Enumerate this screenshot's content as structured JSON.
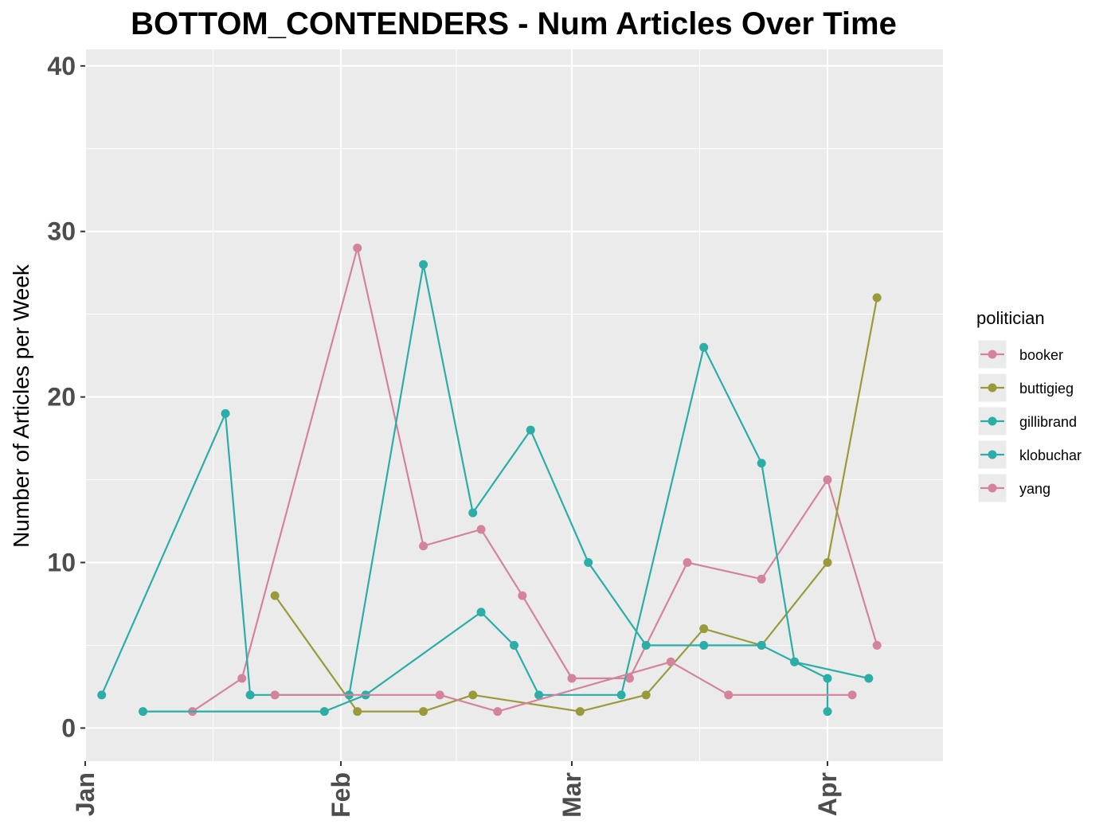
{
  "chart_data": {
    "type": "line",
    "title": "BOTTOM_CONTENDERS - Num Articles Over Time",
    "xlabel": "",
    "ylabel": "Number of Articles per Week",
    "x_ticks": [
      "Jan",
      "Feb",
      "Mar",
      "Apr"
    ],
    "y_ticks": [
      "0",
      "10",
      "20",
      "30",
      "40"
    ],
    "xlim": [
      "2019-01-01",
      "2019-04-15"
    ],
    "ylim": [
      -2,
      41
    ],
    "grid": true,
    "legend_title": "politician",
    "legend_position": "right",
    "series": [
      {
        "name": "booker",
        "color": "#D4849A",
        "points": [
          [
            "2019-01-14",
            1
          ],
          [
            "2019-01-20",
            3
          ],
          [
            "2019-02-03",
            29
          ],
          [
            "2019-02-11",
            11
          ],
          [
            "2019-02-18",
            12
          ],
          [
            "2019-02-23",
            8
          ],
          [
            "2019-03-01",
            3
          ],
          [
            "2019-03-08",
            3
          ],
          [
            "2019-03-15",
            10
          ],
          [
            "2019-03-24",
            9
          ],
          [
            "2019-04-01",
            15
          ],
          [
            "2019-04-07",
            5
          ]
        ]
      },
      {
        "name": "buttigieg",
        "color": "#9A9A3A",
        "points": [
          [
            "2019-01-24",
            8
          ],
          [
            "2019-02-03",
            1
          ],
          [
            "2019-02-11",
            1
          ],
          [
            "2019-02-17",
            2
          ],
          [
            "2019-03-02",
            1
          ],
          [
            "2019-03-10",
            2
          ],
          [
            "2019-03-17",
            6
          ],
          [
            "2019-03-24",
            5
          ],
          [
            "2019-04-01",
            10
          ],
          [
            "2019-04-07",
            26
          ]
        ]
      },
      {
        "name": "gillibrand",
        "color": "#2BADA8",
        "points": [
          [
            "2019-01-03",
            2
          ],
          [
            "2019-01-18",
            19
          ],
          [
            "2019-01-21",
            2
          ],
          [
            "2019-02-02",
            2
          ],
          [
            "2019-02-11",
            28
          ],
          [
            "2019-02-17",
            13
          ],
          [
            "2019-02-24",
            18
          ],
          [
            "2019-03-03",
            10
          ],
          [
            "2019-03-10",
            5
          ],
          [
            "2019-03-17",
            5
          ],
          [
            "2019-03-24",
            5
          ],
          [
            "2019-03-28",
            4
          ],
          [
            "2019-04-06",
            3
          ]
        ]
      },
      {
        "name": "klobuchar",
        "color": "#2BADA8",
        "points": [
          [
            "2019-01-08",
            1
          ],
          [
            "2019-01-30",
            1
          ],
          [
            "2019-02-04",
            2
          ],
          [
            "2019-02-18",
            7
          ],
          [
            "2019-02-22",
            5
          ],
          [
            "2019-02-25",
            2
          ],
          [
            "2019-03-07",
            2
          ],
          [
            "2019-03-17",
            23
          ],
          [
            "2019-03-24",
            16
          ],
          [
            "2019-03-28",
            4
          ],
          [
            "2019-04-01",
            3
          ],
          [
            "2019-04-01",
            1
          ]
        ]
      },
      {
        "name": "yang",
        "color": "#D4849A",
        "points": [
          [
            "2019-01-24",
            2
          ],
          [
            "2019-02-13",
            2
          ],
          [
            "2019-02-20",
            1
          ],
          [
            "2019-03-13",
            4
          ],
          [
            "2019-03-20",
            2
          ],
          [
            "2019-04-04",
            2
          ]
        ]
      }
    ]
  }
}
